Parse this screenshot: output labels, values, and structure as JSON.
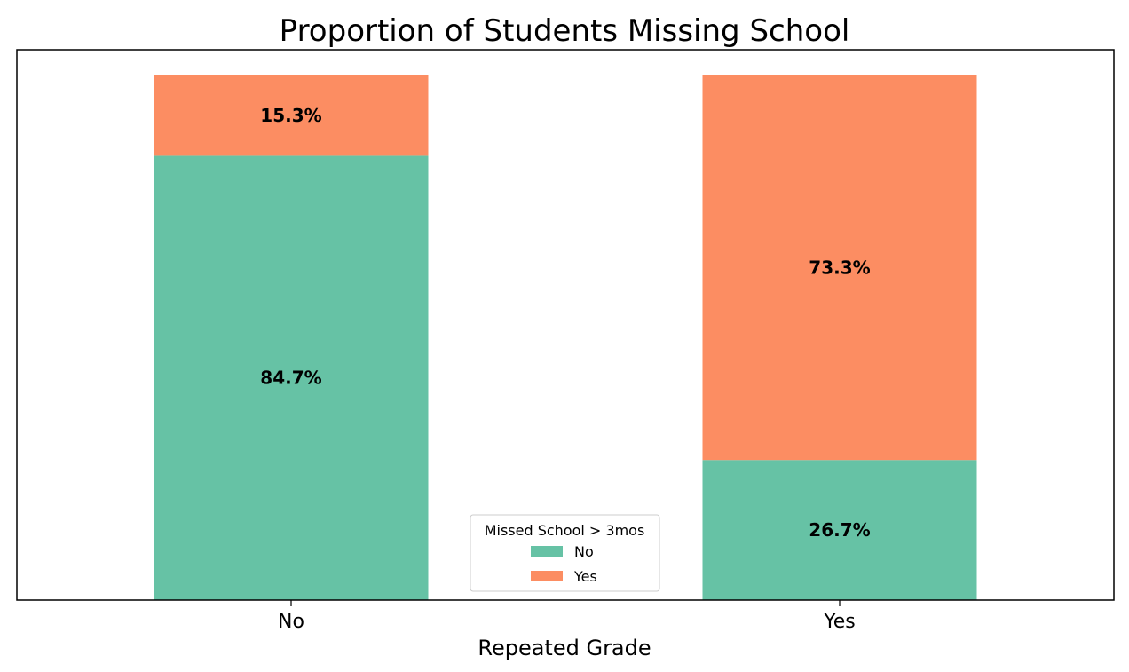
{
  "chart_data": {
    "type": "bar",
    "stacked": true,
    "title": "Proportion of Students Missing School",
    "xlabel": "Repeated Grade",
    "ylabel": "",
    "categories": [
      "No",
      "Yes"
    ],
    "ylim": [
      0,
      100
    ],
    "grid": false,
    "legend": {
      "title": "Missed School > 3mos",
      "placement": "lower center"
    },
    "series": [
      {
        "name": "No",
        "values": [
          84.7,
          26.7
        ],
        "labels": [
          "84.7%",
          "26.7%"
        ],
        "color": "#66c2a5"
      },
      {
        "name": "Yes",
        "values": [
          15.3,
          73.3
        ],
        "labels": [
          "15.3%",
          "73.3%"
        ],
        "color": "#fc8d62"
      }
    ]
  }
}
